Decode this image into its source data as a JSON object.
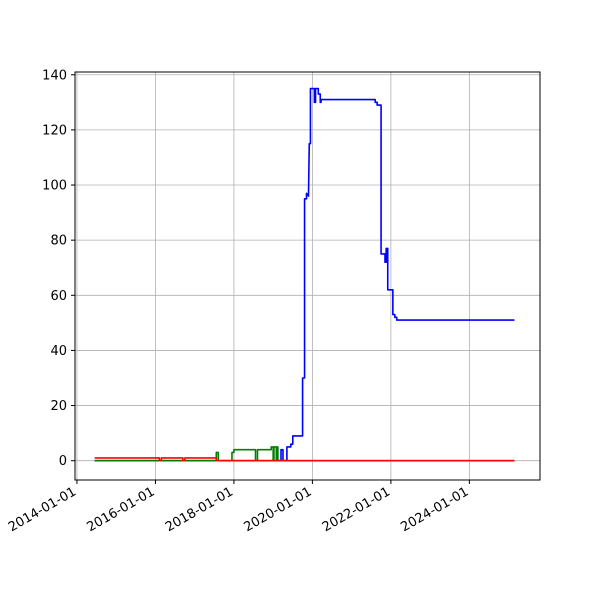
{
  "chart_data": {
    "type": "line",
    "title": "",
    "xlabel": "",
    "ylabel": "",
    "grid": true,
    "xlim": [
      2013.95,
      2025.8
    ],
    "ylim": [
      -7,
      141
    ],
    "x_ticks": [
      2014,
      2016,
      2018,
      2020,
      2022,
      2024
    ],
    "x_tick_labels": [
      "2014-01-01",
      "2016-01-01",
      "2018-01-01",
      "2020-01-01",
      "2022-01-01",
      "2024-01-01"
    ],
    "y_ticks": [
      0,
      20,
      40,
      60,
      80,
      100,
      120,
      140
    ],
    "y_tick_labels": [
      "0",
      "20",
      "40",
      "60",
      "80",
      "100",
      "120",
      "140"
    ],
    "series": [
      {
        "name": "blue",
        "color": "#0000ff",
        "x": [
          2014.45,
          2019.2,
          2019.2,
          2019.25,
          2019.25,
          2019.35,
          2019.35,
          2019.45,
          2019.45,
          2019.5,
          2019.5,
          2019.75,
          2019.75,
          2019.8,
          2019.8,
          2019.85,
          2019.85,
          2019.9,
          2019.92,
          2019.95,
          2019.95,
          2020.05,
          2020.05,
          2020.08,
          2020.08,
          2020.15,
          2020.15,
          2020.2,
          2020.2,
          2020.22,
          2020.22,
          2021.6,
          2021.6,
          2021.65,
          2021.65,
          2021.75,
          2021.75,
          2021.85,
          2021.85,
          2021.88,
          2021.88,
          2021.92,
          2021.92,
          2021.95,
          2021.95,
          2022.05,
          2022.05,
          2022.1,
          2022.1,
          2022.15,
          2022.15,
          2025.15
        ],
        "y": [
          0,
          0,
          4,
          4,
          0,
          0,
          5,
          5,
          6,
          6,
          9,
          9,
          30,
          30,
          95,
          95,
          97,
          96,
          115,
          115,
          135,
          135,
          130,
          130,
          135,
          135,
          133,
          133,
          130,
          130,
          131,
          131,
          130,
          130,
          129,
          129,
          75,
          75,
          72,
          72,
          77,
          77,
          62,
          62,
          62,
          62,
          53,
          53,
          52,
          52,
          51,
          51
        ]
      },
      {
        "name": "green",
        "color": "#008000",
        "x": [
          2014.45,
          2017.55,
          2017.55,
          2017.6,
          2017.6,
          2017.95,
          2017.95,
          2018.0,
          2018.0,
          2018.55,
          2018.55,
          2018.6,
          2018.6,
          2018.95,
          2018.95,
          2019.0,
          2019.0,
          2019.02,
          2019.02,
          2019.08,
          2019.08,
          2019.1,
          2019.1,
          2019.12,
          2019.12,
          2019.15,
          2019.15,
          2025.15
        ],
        "y": [
          0,
          0,
          3,
          3,
          0,
          0,
          3,
          3,
          4,
          4,
          0,
          0,
          4,
          4,
          5,
          5,
          0,
          0,
          5,
          5,
          0,
          0,
          5,
          5,
          0,
          0,
          0,
          0
        ]
      },
      {
        "name": "red",
        "color": "#ff0000",
        "x": [
          2014.45,
          2016.1,
          2016.1,
          2016.15,
          2016.15,
          2016.7,
          2016.7,
          2016.75,
          2016.75,
          2016.8,
          2016.8,
          2017.55,
          2017.55,
          2025.15
        ],
        "y": [
          1,
          1,
          0,
          0,
          1,
          1,
          0,
          0,
          1,
          1,
          1,
          1,
          0,
          0
        ]
      }
    ]
  }
}
